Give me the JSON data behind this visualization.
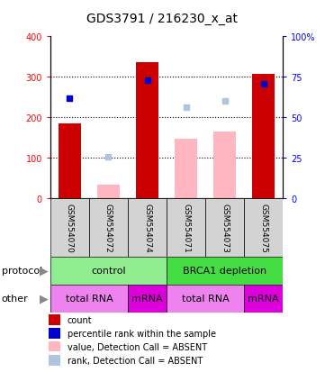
{
  "title": "GDS3791 / 216230_x_at",
  "samples": [
    "GSM554070",
    "GSM554072",
    "GSM554074",
    "GSM554071",
    "GSM554073",
    "GSM554075"
  ],
  "bar_values_red": [
    185,
    0,
    337,
    0,
    0,
    307
  ],
  "bar_values_pink": [
    0,
    35,
    0,
    148,
    165,
    0
  ],
  "dot_values_blue": [
    248,
    0,
    293,
    0,
    0,
    283
  ],
  "dot_values_lightblue": [
    0,
    103,
    0,
    225,
    242,
    0
  ],
  "ylim_left": [
    0,
    400
  ],
  "ylim_right": [
    0,
    100
  ],
  "yticks_left": [
    0,
    100,
    200,
    300,
    400
  ],
  "yticks_right": [
    0,
    25,
    50,
    75,
    100
  ],
  "ytick_labels_right": [
    "0",
    "25",
    "50",
    "75",
    "100%"
  ],
  "protocol_groups": [
    {
      "label": "control",
      "start": 0,
      "end": 3,
      "color": "#90ee90"
    },
    {
      "label": "BRCA1 depletion",
      "start": 3,
      "end": 6,
      "color": "#44dd44"
    }
  ],
  "other_groups": [
    {
      "label": "total RNA",
      "start": 0,
      "end": 2,
      "color": "#ee82ee"
    },
    {
      "label": "mRNA",
      "start": 2,
      "end": 3,
      "color": "#dd00dd"
    },
    {
      "label": "total RNA",
      "start": 3,
      "end": 5,
      "color": "#ee82ee"
    },
    {
      "label": "mRNA",
      "start": 5,
      "end": 6,
      "color": "#dd00dd"
    }
  ],
  "legend_items": [
    {
      "color": "#cc0000",
      "label": "count"
    },
    {
      "color": "#0000cc",
      "label": "percentile rank within the sample"
    },
    {
      "color": "#ffb6c1",
      "label": "value, Detection Call = ABSENT"
    },
    {
      "color": "#b0c4de",
      "label": "rank, Detection Call = ABSENT"
    }
  ],
  "bar_color_red": "#cc0000",
  "bar_color_pink": "#ffb6c1",
  "dot_color_blue": "#0000cc",
  "dot_color_lightblue": "#b0c4de",
  "bg_color": "#ffffff",
  "title_fontsize": 10,
  "tick_fontsize": 7,
  "label_fontsize": 8
}
